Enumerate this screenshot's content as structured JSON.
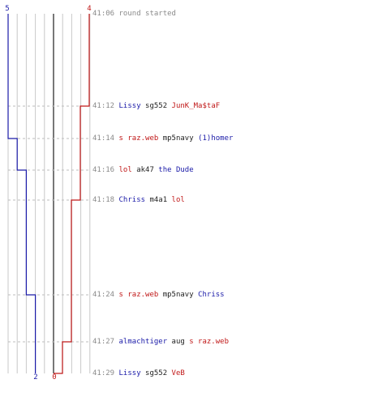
{
  "chart_data": {
    "type": "line",
    "title": "",
    "xlabel": "",
    "ylabel": "",
    "series": [
      {
        "team": "blue",
        "color": "#1a1aa8",
        "start": 5,
        "final": 2,
        "steps": [
          {
            "time": "41:14",
            "value": 4
          },
          {
            "time": "41:16",
            "value": 3
          },
          {
            "time": "41:24",
            "value": 2
          }
        ]
      },
      {
        "team": "red",
        "color": "#c01818",
        "start": 4,
        "final": 0,
        "steps": [
          {
            "time": "41:12",
            "value": 3
          },
          {
            "time": "41:18",
            "value": 2
          },
          {
            "time": "41:27",
            "value": 1
          },
          {
            "time": "41:29",
            "value": 0
          }
        ]
      }
    ],
    "top_labels": {
      "blue": "5",
      "red": "4"
    },
    "bottom_labels": {
      "blue": "2",
      "red": "0"
    },
    "events": [
      {
        "time": "41:06",
        "parts": [
          {
            "text": "round started",
            "color": "gray"
          }
        ]
      },
      {
        "time": "41:12",
        "parts": [
          {
            "text": "Lissy",
            "color": "blue"
          },
          {
            "text": " sg552 ",
            "color": "blk"
          },
          {
            "text": "JunK_Ma$taF",
            "color": "red"
          }
        ]
      },
      {
        "time": "41:14",
        "parts": [
          {
            "text": "s raz.web",
            "color": "red"
          },
          {
            "text": " mp5navy ",
            "color": "blk"
          },
          {
            "text": "(1)homer",
            "color": "blue"
          }
        ]
      },
      {
        "time": "41:16",
        "parts": [
          {
            "text": "lol",
            "color": "red"
          },
          {
            "text": " ak47 ",
            "color": "blk"
          },
          {
            "text": "the Dude",
            "color": "blue"
          }
        ]
      },
      {
        "time": "41:18",
        "parts": [
          {
            "text": "Chriss",
            "color": "blue"
          },
          {
            "text": " m4a1 ",
            "color": "blk"
          },
          {
            "text": "lol",
            "color": "red"
          }
        ]
      },
      {
        "time": "41:24",
        "parts": [
          {
            "text": "s raz.web",
            "color": "red"
          },
          {
            "text": " mp5navy ",
            "color": "blk"
          },
          {
            "text": "Chriss",
            "color": "blue"
          }
        ]
      },
      {
        "time": "41:27",
        "parts": [
          {
            "text": "almachtiger",
            "color": "blue"
          },
          {
            "text": " aug ",
            "color": "blk"
          },
          {
            "text": "s raz.web",
            "color": "red"
          }
        ]
      },
      {
        "time": "41:29",
        "parts": [
          {
            "text": "Lissy",
            "color": "blue"
          },
          {
            "text": " sg552 ",
            "color": "blk"
          },
          {
            "text": "VeB",
            "color": "red"
          }
        ]
      }
    ]
  }
}
